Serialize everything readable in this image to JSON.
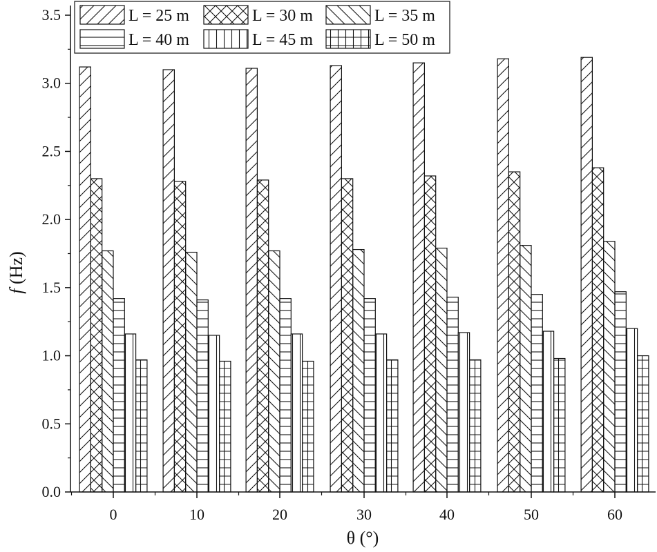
{
  "chart_data": {
    "type": "bar",
    "categories": [
      "0",
      "10",
      "20",
      "30",
      "40",
      "50",
      "60"
    ],
    "series": [
      {
        "name": "L = 25 m",
        "values": [
          3.12,
          3.1,
          3.11,
          3.13,
          3.15,
          3.18,
          3.19
        ],
        "pattern": "diag-forward"
      },
      {
        "name": "L = 30 m",
        "values": [
          2.3,
          2.28,
          2.29,
          2.3,
          2.32,
          2.35,
          2.38
        ],
        "pattern": "crosshatch"
      },
      {
        "name": "L = 35 m",
        "values": [
          1.77,
          1.76,
          1.77,
          1.78,
          1.79,
          1.81,
          1.84
        ],
        "pattern": "diag-back"
      },
      {
        "name": "L = 40 m",
        "values": [
          1.42,
          1.41,
          1.42,
          1.42,
          1.43,
          1.45,
          1.47
        ],
        "pattern": "horizontal"
      },
      {
        "name": "L = 45 m",
        "values": [
          1.16,
          1.15,
          1.16,
          1.16,
          1.17,
          1.18,
          1.2
        ],
        "pattern": "vertical"
      },
      {
        "name": "L = 50 m",
        "values": [
          0.97,
          0.96,
          0.96,
          0.97,
          0.97,
          0.98,
          1.0
        ],
        "pattern": "grid"
      }
    ],
    "xlabel": "θ (°)",
    "ylabel_italic": "f",
    "ylabel_rest": " (Hz)",
    "ylim": [
      0,
      3.5
    ],
    "yticks": [
      "0.0",
      "0.5",
      "1.0",
      "1.5",
      "2.0",
      "2.5",
      "3.0",
      "3.5"
    ],
    "grid": false,
    "legend_position": "top-left",
    "colors": {
      "stroke": "#111111",
      "background": "#ffffff"
    }
  }
}
